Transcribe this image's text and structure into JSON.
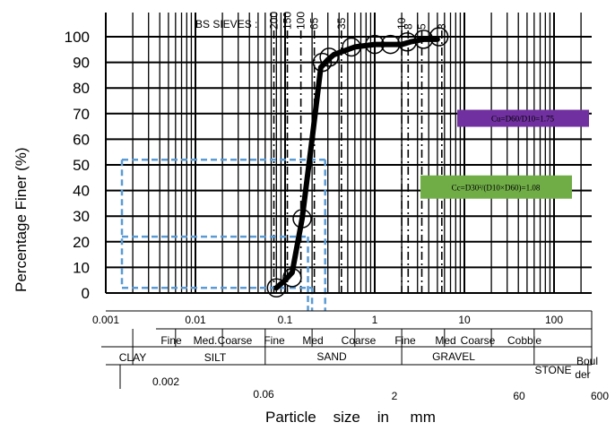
{
  "chart_data": {
    "type": "line",
    "title": "",
    "xlabel": "Particle    size    in     mm",
    "ylabel": "Percentage Finer  (%)",
    "x_scale": "log",
    "xlim": [
      0.001,
      10
    ],
    "ylim": [
      0,
      100
    ],
    "y_ticks": [
      0,
      10,
      20,
      30,
      40,
      50,
      60,
      70,
      80,
      90,
      100
    ],
    "x_tick_labels": [
      "0.001",
      "0.01",
      "0.1",
      "1",
      "10",
      "100"
    ],
    "sieves_label": "BS SIEVES :",
    "sieve_numbers": [
      {
        "label": "200",
        "mm": 0.075
      },
      {
        "label": "150",
        "mm": 0.106
      },
      {
        "label": "100",
        "mm": 0.15
      },
      {
        "label": "65",
        "mm": 0.212
      },
      {
        "label": "35",
        "mm": 0.425
      },
      {
        "label": "10",
        "mm": 2.0
      },
      {
        "label": "8",
        "mm": 2.36
      },
      {
        "label": "5",
        "mm": 3.35
      },
      {
        "label": "3",
        "mm": 5.6
      }
    ],
    "series": [
      {
        "values": [
          {
            "x": 0.08,
            "y": 2
          },
          {
            "x": 0.1,
            "y": 5
          },
          {
            "x": 0.12,
            "y": 8
          },
          {
            "x": 0.155,
            "y": 29
          },
          {
            "x": 0.2,
            "y": 60
          },
          {
            "x": 0.25,
            "y": 88
          },
          {
            "x": 0.3,
            "y": 91
          },
          {
            "x": 0.35,
            "y": 93
          },
          {
            "x": 0.6,
            "y": 96
          },
          {
            "x": 1.0,
            "y": 97
          },
          {
            "x": 1.5,
            "y": 97
          },
          {
            "x": 2.0,
            "y": 97
          },
          {
            "x": 2.5,
            "y": 98
          },
          {
            "x": 3.5,
            "y": 99
          },
          {
            "x": 5.0,
            "y": 99
          }
        ]
      }
    ],
    "markers": [
      {
        "x": 0.08,
        "y": 2
      },
      {
        "x": 0.12,
        "y": 6
      },
      {
        "x": 0.155,
        "y": 29
      },
      {
        "x": 0.26,
        "y": 90
      },
      {
        "x": 0.31,
        "y": 92
      },
      {
        "x": 0.55,
        "y": 96
      },
      {
        "x": 1.0,
        "y": 97
      },
      {
        "x": 1.5,
        "y": 97
      },
      {
        "x": 2.3,
        "y": 98
      },
      {
        "x": 3.5,
        "y": 99
      },
      {
        "x": 5.2,
        "y": 100
      }
    ],
    "guide_lines": [
      {
        "y": 2,
        "x_end": 0.2
      },
      {
        "y": 22,
        "x_end": 0.18
      },
      {
        "y": 52,
        "x_end": 0.28
      }
    ],
    "annotations": [
      {
        "text": "Cu=D60/D10=1.75",
        "color": "#7030a0",
        "y": 68
      },
      {
        "text": "Cc=D30²/(D10×D60)=1.08",
        "color": "#70ad47",
        "y": 41
      }
    ],
    "classification": {
      "row1_labels": [
        "Fine",
        "Med.",
        "Coarse",
        "Fine",
        "Med",
        "Coarse",
        "Fine",
        "Med",
        "Coarse",
        "Cobble"
      ],
      "row2_labels": [
        "CLAY",
        "SILT",
        "SAND",
        "GRAVEL",
        "STONE",
        "Boul",
        "der"
      ],
      "boundaries": [
        "0.002",
        "0.06",
        "2",
        "60",
        "600"
      ]
    }
  },
  "colors": {
    "curve": "#000000",
    "marker": "#000000",
    "guide": "#5b9bd5",
    "cu_box": "#7030a0",
    "cc_box": "#70ad47"
  }
}
